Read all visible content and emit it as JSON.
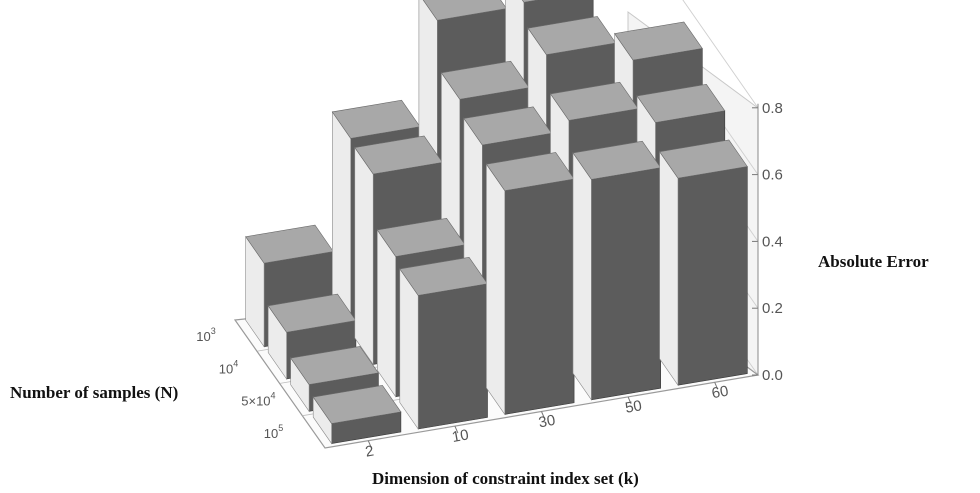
{
  "chart_data": {
    "type": "bar",
    "title": "",
    "xlabel": "Dimension of constraint index set (k)",
    "ylabel": "Number of samples (N)",
    "zlabel": "Absolute Error",
    "k_categories": [
      "2",
      "10",
      "30",
      "50",
      "60"
    ],
    "n_categories": [
      "10^3",
      "10^4",
      "5x10^4",
      "10^5"
    ],
    "z_ticks": [
      "0.0",
      "0.2",
      "0.4",
      "0.6",
      "0.8"
    ],
    "zlim": [
      0,
      0.8
    ],
    "series": [
      {
        "name": "10^3",
        "values": [
          0.25,
          0.58,
          0.89,
          0.9,
          null
        ]
      },
      {
        "name": "10^4",
        "values": [
          0.14,
          0.57,
          0.75,
          0.84,
          0.78
        ]
      },
      {
        "name": "5x10^4",
        "values": [
          0.08,
          0.42,
          0.71,
          0.74,
          0.69
        ]
      },
      {
        "name": "10^5",
        "values": [
          0.06,
          0.4,
          0.67,
          0.66,
          0.62
        ]
      }
    ]
  }
}
